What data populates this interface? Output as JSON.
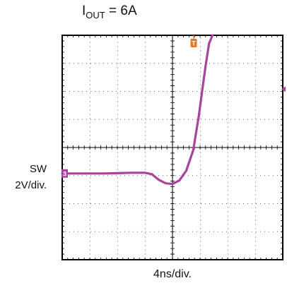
{
  "header": {
    "condition_main": "I",
    "condition_sub": "OUT",
    "condition_value": " = 6A"
  },
  "channel": {
    "name": "SW",
    "scale": "2V/div.",
    "marker_label": "3"
  },
  "trigger": {
    "marker_label": "T"
  },
  "colors": {
    "trace": "#a9449c",
    "trigger": "#e0782d",
    "frame": "#000000",
    "grid_dots": "#555555"
  },
  "chart_data": {
    "type": "line",
    "title": "",
    "xlabel": "4ns/div.",
    "ylabel": "SW 2V/div.",
    "x_unit": "ns",
    "y_unit": "V",
    "grid": true,
    "divisions": {
      "x": 8,
      "y": 8
    },
    "xlim": [
      -16,
      16
    ],
    "ylim": [
      -8,
      8
    ],
    "series": [
      {
        "name": "SW",
        "x": [
          -16,
          -14,
          -12,
          -10,
          -8,
          -6,
          -4,
          -3,
          -2,
          -1,
          0,
          1,
          2,
          3,
          3.8,
          4.3,
          4.8,
          5.3,
          5.8
        ],
        "y": [
          -1.85,
          -1.85,
          -1.85,
          -1.85,
          -1.83,
          -1.8,
          -1.8,
          -1.9,
          -2.3,
          -2.55,
          -2.6,
          -2.35,
          -1.65,
          -0.2,
          2.2,
          4.0,
          5.8,
          7.4,
          8.0
        ]
      }
    ]
  }
}
